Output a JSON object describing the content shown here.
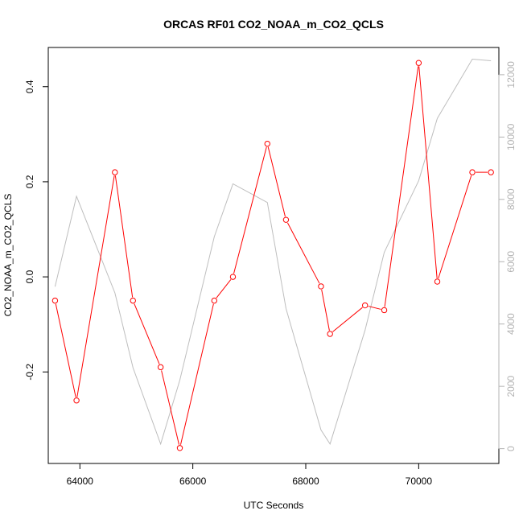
{
  "chart_data": {
    "type": "line",
    "title": "ORCAS RF01 CO2_NOAA_m_CO2_QCLS",
    "xlabel": "UTC Seconds",
    "ylabel": "CO2_NOAA_m_CO2_QCLS",
    "x_ticks": [
      64000,
      66000,
      68000,
      70000
    ],
    "y_ticks": [
      -0.2,
      0.0,
      0.2,
      0.4
    ],
    "y_tick_labels": [
      "-0.2",
      "0.0",
      "0.2",
      "0.4"
    ],
    "y2_ticks": [
      0,
      2000,
      4000,
      6000,
      8000,
      10000,
      12000
    ],
    "xlim": [
      63440,
      71420
    ],
    "ylim": [
      -0.3925,
      0.4825
    ],
    "y2lim": [
      -475,
      12875
    ],
    "series": [
      {
        "color": "#ff0000",
        "axis": "left",
        "marker": "open-circle",
        "x": [
          63560,
          63940,
          64620,
          64940,
          65430,
          65770,
          66380,
          66710,
          67320,
          67650,
          68270,
          68430,
          69050,
          69390,
          70000,
          70330,
          70950,
          71280
        ],
        "y": [
          -0.05,
          -0.26,
          0.22,
          -0.05,
          -0.19,
          -0.36,
          -0.05,
          0.0,
          0.28,
          0.12,
          -0.02,
          -0.12,
          -0.06,
          -0.07,
          0.45,
          -0.01,
          0.22,
          0.22
        ]
      },
      {
        "color": "#bebebe",
        "axis": "right",
        "marker": "none",
        "x": [
          63560,
          63940,
          64620,
          64940,
          65430,
          65770,
          66380,
          66710,
          67320,
          67650,
          68270,
          68430,
          69050,
          69390,
          70000,
          70330,
          70950,
          71280
        ],
        "y": [
          5200,
          8100,
          5000,
          2600,
          150,
          2200,
          6800,
          8500,
          7900,
          4500,
          600,
          150,
          3800,
          6300,
          8600,
          10600,
          12500,
          12450
        ]
      }
    ]
  }
}
